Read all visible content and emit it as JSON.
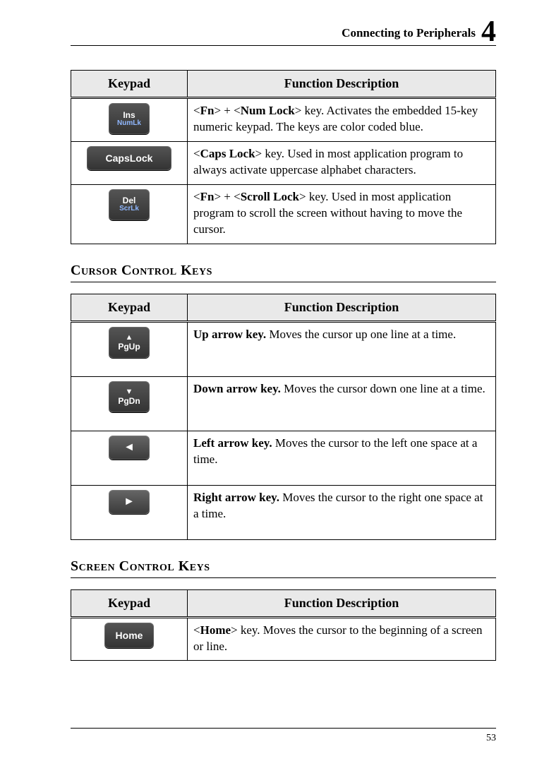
{
  "header": {
    "title": "Connecting to Peripherals",
    "chapter_number": "4"
  },
  "table_headers": {
    "keypad": "Keypad",
    "function": "Function Description"
  },
  "lock_keys": [
    {
      "key_line1": "Ins",
      "key_line2": "NumLk",
      "desc_pre": "<",
      "k1": "Fn",
      "mid1": "> + <",
      "k2": "Num Lock",
      "desc_post": "> key. Activates the embedded 15-key numeric keypad. The keys are color coded blue."
    },
    {
      "key_wide": "CapsLock",
      "desc_pre": "<",
      "k1": "Caps Lock",
      "desc_post": "> key. Used in most application program to always activate uppercase alphabet characters."
    },
    {
      "key_line1": "Del",
      "key_line2": "ScrLk",
      "desc_pre": "<",
      "k1": "Fn",
      "mid1": "> + <",
      "k2": "Scroll Lock",
      "desc_post": "> key. Used in most application program to scroll the screen without having to move the cursor."
    }
  ],
  "section_cursor": "Cursor Control Keys",
  "cursor_keys": [
    {
      "glyph": "▲",
      "label": "PgUp",
      "bold": "Up arrow key.",
      "rest": " Moves the cursor up one line at a time."
    },
    {
      "glyph": "▼",
      "label": "PgDn",
      "bold": "Down arrow key.",
      "rest": " Moves the cursor down one line at a time."
    },
    {
      "arrow": "◄",
      "bold": "Left arrow key.",
      "rest": " Moves the cursor to the left one space at a time."
    },
    {
      "arrow": "►",
      "bold": "Right arrow key.",
      "rest": " Moves the cursor to the right one space at a time."
    }
  ],
  "section_screen": "Screen Control Keys",
  "screen_keys": [
    {
      "key_label": "Home",
      "desc_pre": "<",
      "k1": "Home",
      "desc_post": "> key. Moves the cursor to the beginning of a screen or line."
    }
  ],
  "page_number": "53"
}
